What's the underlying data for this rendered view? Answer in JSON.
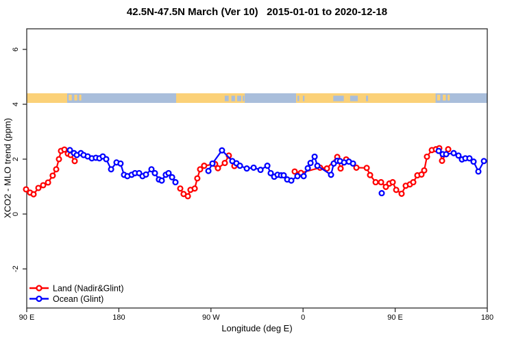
{
  "title": "42.5N-47.5N March (Ver 10)   2015-01-01 to 2020-12-18",
  "axes": {
    "x": {
      "label": "Longitude (deg E)",
      "range": [
        90,
        540
      ],
      "ticks": [
        {
          "value": 90,
          "label": "90 E"
        },
        {
          "value": 180,
          "label": "180"
        },
        {
          "value": 270,
          "label": "90 W"
        },
        {
          "value": 360,
          "label": "0"
        },
        {
          "value": 450,
          "label": "90 E"
        },
        {
          "value": 540,
          "label": "180"
        }
      ]
    },
    "y": {
      "label": "XCO2 - MLO trend (ppm)",
      "range": [
        -3.4,
        6.75
      ],
      "ticks": [
        {
          "value": -2,
          "label": "-2"
        },
        {
          "value": 0,
          "label": "0"
        },
        {
          "value": 2,
          "label": "2"
        },
        {
          "value": 4,
          "label": "4"
        },
        {
          "value": 6,
          "label": "6"
        }
      ]
    }
  },
  "legend": {
    "items": [
      {
        "label": "Land (Nadir&Glint)",
        "color": "#ff0000"
      },
      {
        "label": "Ocean (Glint)",
        "color": "#0000ff"
      }
    ]
  },
  "map_band": {
    "description": "land/ocean strip for latitude band 42.5N-47.5N",
    "land_color": "#fbd178",
    "ocean_color": "#a9bedb",
    "y_range": [
      4.05,
      4.4
    ],
    "land_runs": [
      [
        90,
        129.5
      ],
      [
        236,
        303
      ],
      [
        353.2,
        489.5
      ]
    ],
    "land_patches": [
      [
        131,
        134
      ],
      [
        136.5,
        139.3
      ],
      [
        141.3,
        143.3
      ],
      [
        491,
        494
      ],
      [
        496.5,
        499.5
      ],
      [
        501.3,
        503.3
      ]
    ],
    "ocean_patches": [
      [
        283.5,
        287.3
      ],
      [
        290,
        293.5
      ],
      [
        295.6,
        299.6
      ],
      [
        301,
        302.5
      ],
      [
        354.5,
        356.2
      ],
      [
        359.8,
        361.4
      ],
      [
        389.5,
        399.8
      ],
      [
        406,
        413.5
      ],
      [
        421.5,
        423.5
      ]
    ]
  },
  "chart_data": {
    "type": "line",
    "title": "42.5N-47.5N March (Ver 10)   2015-01-01 to 2020-12-18",
    "xlabel": "Longitude (deg E)",
    "ylabel": "XCO2 - MLO trend (ppm)",
    "xlim": [
      90,
      540
    ],
    "ylim": [
      -3.4,
      6.75
    ],
    "grid": false,
    "legend_position": "bottom-left",
    "marker": "open-circle",
    "series": [
      {
        "name": "Land (Nadir&Glint)",
        "color": "#ff0000",
        "segments": [
          [
            [
              89.3,
              0.9
            ],
            [
              93.3,
              0.78
            ],
            [
              96.7,
              0.72
            ],
            [
              101.4,
              0.95
            ],
            [
              106.1,
              1.05
            ],
            [
              110.8,
              1.15
            ],
            [
              115.4,
              1.4
            ],
            [
              118.8,
              1.63
            ],
            [
              121.5,
              2.0
            ],
            [
              123.5,
              2.3
            ],
            [
              126.8,
              2.35
            ],
            [
              130.2,
              2.2
            ],
            [
              132.9,
              2.15
            ],
            [
              136.9,
              1.93
            ]
          ],
          [
            [
              240.0,
              0.93
            ],
            [
              243.3,
              0.73
            ],
            [
              247.4,
              0.65
            ],
            [
              250.0,
              0.88
            ],
            [
              254.1,
              0.93
            ],
            [
              256.7,
              1.3
            ],
            [
              259.4,
              1.63
            ],
            [
              263.4,
              1.76
            ],
            [
              274.1,
              1.82
            ],
            [
              276.8,
              1.67
            ],
            [
              283.5,
              1.86
            ],
            [
              287.5,
              2.13
            ],
            [
              292.9,
              1.75
            ]
          ],
          [
            [
              351.8,
              1.55
            ],
            [
              357.9,
              1.5
            ],
            [
              376.6,
              1.69
            ],
            [
              383.3,
              1.66
            ],
            [
              393.4,
              2.08
            ],
            [
              396.7,
              1.66
            ],
            [
              402.1,
              1.99
            ],
            [
              412.1,
              1.69
            ],
            [
              422.2,
              1.68
            ],
            [
              425.5,
              1.42
            ],
            [
              430.9,
              1.16
            ],
            [
              436.2,
              1.16
            ],
            [
              440.9,
              0.99
            ],
            [
              444.3,
              1.11
            ],
            [
              447.6,
              1.16
            ],
            [
              451.0,
              0.88
            ],
            [
              456.3,
              0.74
            ],
            [
              460.3,
              1.03
            ],
            [
              464.4,
              1.08
            ],
            [
              467.7,
              1.16
            ],
            [
              471.7,
              1.41
            ],
            [
              475.7,
              1.44
            ],
            [
              478.4,
              1.59
            ],
            [
              481.1,
              2.09
            ],
            [
              485.8,
              2.33
            ],
            [
              489.8,
              2.36
            ],
            [
              493.1,
              2.4
            ],
            [
              495.8,
              1.94
            ],
            [
              501.8,
              2.36
            ]
          ]
        ]
      },
      {
        "name": "Ocean (Glint)",
        "color": "#0000ff",
        "segments": [
          [
            [
              132.2,
              2.33
            ],
            [
              136.2,
              2.22
            ],
            [
              138.9,
              2.15
            ],
            [
              142.9,
              2.22
            ],
            [
              145.6,
              2.15
            ],
            [
              149.6,
              2.1
            ],
            [
              153.6,
              2.03
            ],
            [
              157.6,
              2.05
            ],
            [
              161.0,
              2.03
            ],
            [
              164.3,
              2.1
            ],
            [
              167.7,
              2.0
            ],
            [
              172.4,
              1.63
            ],
            [
              177.7,
              1.88
            ],
            [
              181.7,
              1.84
            ],
            [
              185.1,
              1.43
            ],
            [
              188.4,
              1.38
            ],
            [
              192.5,
              1.43
            ],
            [
              195.8,
              1.49
            ],
            [
              199.8,
              1.49
            ],
            [
              203.2,
              1.38
            ],
            [
              206.5,
              1.44
            ],
            [
              211.9,
              1.63
            ],
            [
              215.2,
              1.49
            ],
            [
              219.2,
              1.26
            ],
            [
              221.9,
              1.22
            ],
            [
              225.9,
              1.43
            ],
            [
              228.6,
              1.49
            ],
            [
              232.0,
              1.34
            ],
            [
              235.3,
              1.16
            ]
          ],
          [
            [
              267.5,
              1.57
            ],
            [
              271.5,
              1.84
            ],
            [
              280.8,
              2.32
            ],
            [
              290.9,
              1.93
            ],
            [
              294.9,
              1.85
            ],
            [
              298.3,
              1.76
            ],
            [
              305.0,
              1.66
            ],
            [
              311.7,
              1.69
            ],
            [
              318.4,
              1.61
            ],
            [
              325.1,
              1.76
            ],
            [
              328.4,
              1.49
            ],
            [
              331.8,
              1.36
            ],
            [
              335.1,
              1.43
            ],
            [
              338.5,
              1.41
            ],
            [
              341.1,
              1.41
            ],
            [
              344.5,
              1.26
            ],
            [
              348.5,
              1.22
            ],
            [
              354.5,
              1.38
            ],
            [
              360.6,
              1.38
            ],
            [
              364.6,
              1.67
            ],
            [
              367.3,
              1.86
            ],
            [
              371.3,
              2.09
            ],
            [
              374.0,
              1.76
            ],
            [
              387.3,
              1.43
            ],
            [
              390.0,
              1.84
            ],
            [
              393.4,
              1.94
            ],
            [
              396.1,
              1.93
            ],
            [
              400.1,
              1.88
            ],
            [
              404.8,
              1.91
            ],
            [
              408.8,
              1.84
            ]
          ],
          [
            [
              436.9,
              0.76
            ]
          ],
          [
            [
              492.5,
              2.3
            ],
            [
              496.5,
              2.18
            ],
            [
              499.8,
              2.18
            ],
            [
              507.2,
              2.22
            ],
            [
              511.9,
              2.13
            ],
            [
              515.2,
              1.99
            ],
            [
              518.6,
              2.03
            ],
            [
              522.6,
              2.03
            ],
            [
              526.6,
              1.91
            ],
            [
              531.3,
              1.55
            ],
            [
              536.7,
              1.93
            ]
          ]
        ]
      }
    ]
  }
}
